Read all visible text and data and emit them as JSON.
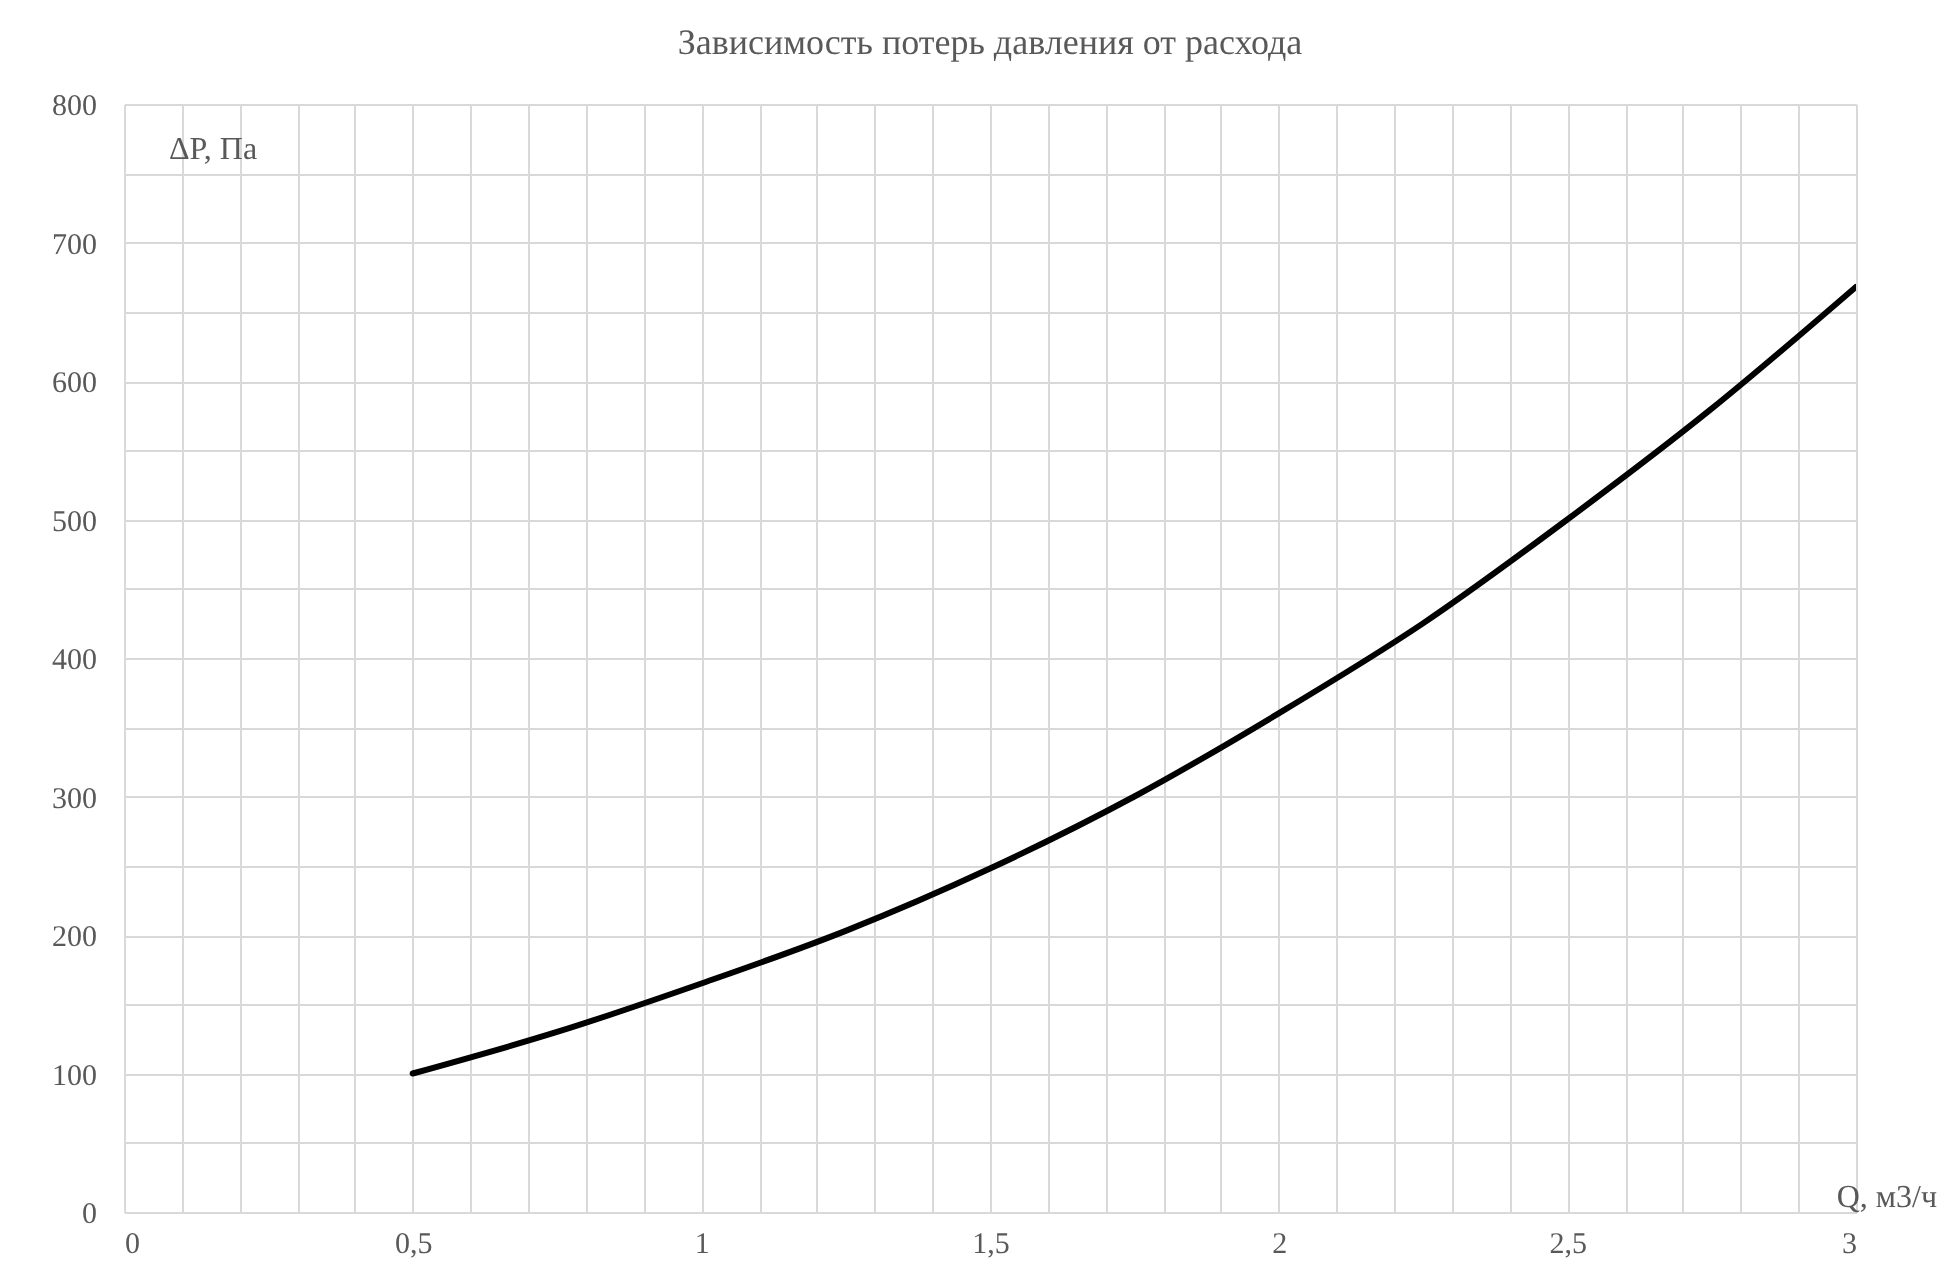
{
  "chart_data": {
    "type": "line",
    "title": "Зависимость потерь давления от расхода",
    "xlabel": "Q, м3/ч",
    "ylabel": "ΔP, Па",
    "x": [
      0.5,
      0.75,
      1,
      1.25,
      1.5,
      1.75,
      2,
      2.25,
      2.5,
      2.75,
      3
    ],
    "series": [
      {
        "color": "#000000",
        "values": [
          100,
          130,
          165,
          203,
          248,
          300,
          360,
          425,
          500,
          580,
          668
        ]
      }
    ],
    "xlim": [
      0,
      3
    ],
    "ylim": [
      0,
      800
    ],
    "xticks": [
      0,
      {
        "value": 0.1,
        "label": null
      },
      {
        "value": 0.2,
        "label": null
      },
      {
        "value": 0.3,
        "label": null
      },
      {
        "value": 0.4,
        "label": null
      },
      {
        "value": 0.5,
        "label": "0,5"
      },
      {
        "value": 0.6,
        "label": null
      },
      {
        "value": 0.7,
        "label": null
      },
      {
        "value": 0.8,
        "label": null
      },
      {
        "value": 0.9,
        "label": null
      },
      1,
      {
        "value": 1.1,
        "label": null
      },
      {
        "value": 1.2,
        "label": null
      },
      {
        "value": 1.3,
        "label": null
      },
      {
        "value": 1.4,
        "label": null
      },
      {
        "value": 1.5,
        "label": "1,5"
      },
      {
        "value": 1.6,
        "label": null
      },
      {
        "value": 1.7,
        "label": null
      },
      {
        "value": 1.8,
        "label": null
      },
      {
        "value": 1.9,
        "label": null
      },
      2,
      {
        "value": 2.1,
        "label": null
      },
      {
        "value": 2.2,
        "label": null
      },
      {
        "value": 2.3,
        "label": null
      },
      {
        "value": 2.4,
        "label": null
      },
      {
        "value": 2.5,
        "label": "2,5"
      },
      {
        "value": 2.6,
        "label": null
      },
      {
        "value": 2.7,
        "label": null
      },
      {
        "value": 2.8,
        "label": null
      },
      {
        "value": 2.9,
        "label": null
      },
      3
    ],
    "yticks": [
      0,
      {
        "value": 50,
        "label": null
      },
      100,
      {
        "value": 150,
        "label": null
      },
      200,
      {
        "value": 250,
        "label": null
      },
      300,
      {
        "value": 350,
        "label": null
      },
      400,
      {
        "value": 450,
        "label": null
      },
      500,
      {
        "value": 550,
        "label": null
      },
      600,
      {
        "value": 650,
        "label": null
      },
      700,
      {
        "value": 750,
        "label": null
      },
      800
    ],
    "grid": true,
    "marker": "none",
    "line_style": "solid"
  }
}
